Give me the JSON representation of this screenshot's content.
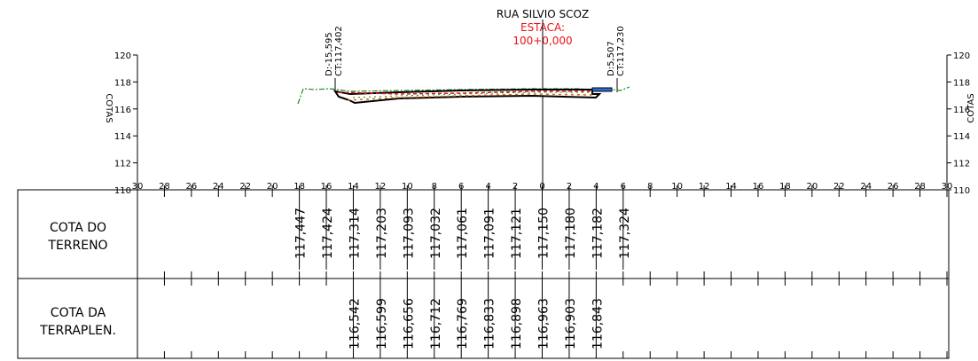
{
  "header": {
    "street": "RUA SILVIO SCOZ",
    "station_label": "ESTACA:",
    "station_value": "100+0,000"
  },
  "offsets": {
    "left_distance": "D:-15,595",
    "left_ct": "CT:117,402",
    "right_distance": "D:5,507",
    "right_ct": "CT:117,230"
  },
  "axis": {
    "y_title": "COTAS",
    "y_ticks": [
      "120",
      "118",
      "116",
      "114",
      "112",
      "110"
    ],
    "x_ticks": [
      "30",
      "28",
      "26",
      "24",
      "22",
      "20",
      "18",
      "16",
      "14",
      "12",
      "10",
      "8",
      "6",
      "4",
      "2",
      "0",
      "2",
      "4",
      "6",
      "8",
      "10",
      "12",
      "14",
      "16",
      "18",
      "20",
      "22",
      "24",
      "26",
      "28",
      "30"
    ]
  },
  "table": {
    "row1_title_a": "COTA DO",
    "row1_title_b": "TERRENO",
    "row2_title_a": "COTA DA",
    "row2_title_b": "TERRAPLEN."
  },
  "colors": {
    "line": "#000000",
    "station": "#e8141a",
    "terrain": "#1f8a1f",
    "pavement_hatch": "#d26a0a",
    "existing": "#2a6fd6"
  },
  "chart_data": {
    "type": "line",
    "x_range": [
      -30,
      30
    ],
    "y_range": [
      110,
      120
    ],
    "station_label": "100+0,000",
    "terreno": {
      "x": [
        -18,
        -16,
        -14,
        -12,
        -10,
        -8,
        -6,
        -4,
        -2,
        0,
        2,
        4,
        6
      ],
      "cotas": [
        "117,447",
        "117,424",
        "117,314",
        "117,203",
        "117,093",
        "117,032",
        "117,061",
        "117,091",
        "117,121",
        "117,150",
        "117,180",
        "117,182",
        "117,324"
      ]
    },
    "terraplenagem": {
      "x": [
        -14,
        -12,
        -10,
        -8,
        -6,
        -4,
        -2,
        0,
        2,
        4
      ],
      "cotas": [
        "116,542",
        "116,599",
        "116,656",
        "116,712",
        "116,769",
        "116,833",
        "116,898",
        "116,963",
        "116,903",
        "116,843"
      ]
    }
  }
}
